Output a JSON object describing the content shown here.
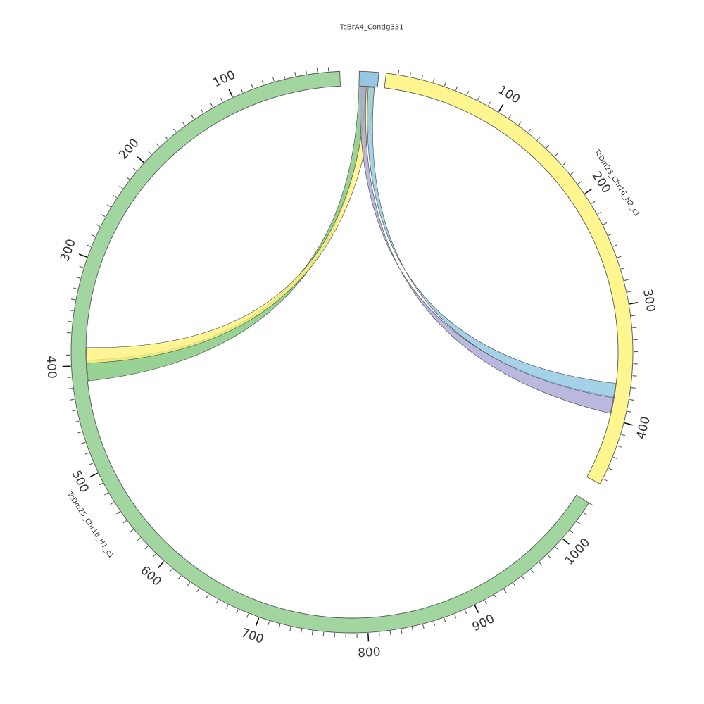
{
  "segments": [
    {
      "id": "contig331",
      "label": "TcBrA4_Contig331",
      "length": 30,
      "color": "#98c7e3",
      "label_mode": "top",
      "ticks": false
    },
    {
      "id": "h2",
      "label": "TcDm25_Chr16_H2_c1",
      "length": 455,
      "color": "#fff68f",
      "label_mode": "radial",
      "major_step": 100,
      "minor_step": 10,
      "tick_labels": [
        "100",
        "200",
        "300",
        "400"
      ]
    },
    {
      "id": "h1",
      "label": "TcDm25_Chr16_H1_c1",
      "length": 1040,
      "color": "#a2d6a0",
      "label_mode": "radial",
      "major_step": 100,
      "minor_step": 10,
      "tick_labels": [
        "100",
        "200",
        "300",
        "400",
        "500",
        "600",
        "700",
        "800",
        "900",
        "1000"
      ]
    }
  ],
  "links": [
    {
      "a_segment": "contig331",
      "a_start": 0,
      "a_end": 12,
      "b_segment": "h1",
      "b_start": 395,
      "b_end": 415,
      "color": "#7fc77b"
    },
    {
      "a_segment": "contig331",
      "a_start": 12,
      "a_end": 25,
      "b_segment": "h1",
      "b_start": 383,
      "b_end": 398,
      "color": "#fff37a"
    },
    {
      "a_segment": "contig331",
      "a_start": 2,
      "a_end": 12,
      "b_segment": "h2",
      "b_start": 380,
      "b_end": 395,
      "color": "#a9a6d6"
    },
    {
      "a_segment": "contig331",
      "a_start": 15,
      "a_end": 25,
      "b_segment": "h2",
      "b_start": 368,
      "b_end": 381,
      "color": "#8fc5e3"
    }
  ]
}
